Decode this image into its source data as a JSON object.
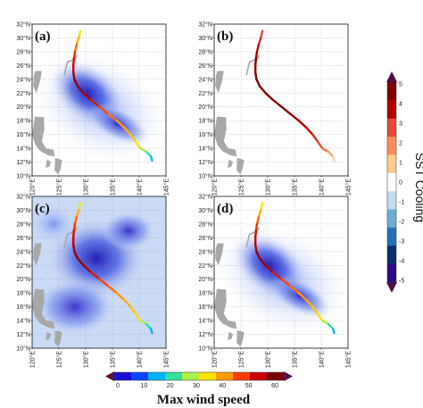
{
  "figure": {
    "panels": [
      {
        "label": "(a)",
        "field": "sst_cooling",
        "background": "#ffffff",
        "track_style": "wind"
      },
      {
        "label": "(b)",
        "field": "none",
        "background": "#ffffff",
        "track_style": "cooling"
      },
      {
        "label": "(c)",
        "field": "sst_cooling_full",
        "background": "#ffffff",
        "track_style": "wind"
      },
      {
        "label": "(d)",
        "field": "sst_cooling",
        "background": "#ffffff",
        "track_style": "wind"
      }
    ],
    "lat_ticks": [
      "32°N",
      "30°N",
      "28°N",
      "26°N",
      "24°N",
      "22°N",
      "20°N",
      "18°N",
      "16°N",
      "14°N",
      "12°N",
      "10°N"
    ],
    "lon_ticks": [
      "120°E",
      "125°E",
      "130°E",
      "135°E",
      "140°E",
      "145°E"
    ],
    "map_extent": {
      "lon_min": 120,
      "lon_max": 145,
      "lat_min": 10,
      "lat_max": 32
    },
    "track": [
      [
        129.0,
        31.0
      ],
      [
        128.7,
        30.0
      ],
      [
        128.3,
        29.0
      ],
      [
        128.0,
        28.0
      ],
      [
        127.8,
        27.0
      ],
      [
        127.7,
        26.0
      ],
      [
        127.7,
        25.0
      ],
      [
        127.9,
        24.0
      ],
      [
        128.5,
        23.0
      ],
      [
        129.6,
        22.0
      ],
      [
        131.0,
        21.0
      ],
      [
        132.6,
        20.0
      ],
      [
        134.2,
        19.0
      ],
      [
        135.8,
        18.0
      ],
      [
        137.2,
        17.0
      ],
      [
        138.4,
        16.0
      ],
      [
        139.3,
        15.0
      ],
      [
        140.2,
        14.0
      ],
      [
        141.3,
        13.5
      ],
      [
        142.2,
        12.8
      ],
      [
        142.4,
        12.2
      ]
    ],
    "track_wind": [
      30,
      38,
      45,
      50,
      55,
      57,
      59,
      62,
      63,
      62,
      58,
      52,
      48,
      45,
      42,
      40,
      38,
      35,
      25,
      18,
      12
    ],
    "track_cooling": [
      2.8,
      3.2,
      3.6,
      4.0,
      4.3,
      4.6,
      4.8,
      5.0,
      5.0,
      4.9,
      4.8,
      4.7,
      4.6,
      4.3,
      4.0,
      3.6,
      3.2,
      2.8,
      2.0,
      1.2,
      0.5
    ],
    "colorbar_sst": {
      "title": "SST Cooling",
      "ticks": [
        "5",
        "4",
        "3",
        "2",
        "1",
        "0",
        "-1",
        "-2",
        "-3",
        "-4",
        "-5"
      ],
      "colors": [
        "#7f0000",
        "#b30000",
        "#e34a33",
        "#fc8d59",
        "#fdcc8a",
        "#ffffff",
        "#c6dbef",
        "#6baed6",
        "#2171b5",
        "#08306b",
        "#2a0a8a"
      ],
      "arrow_color": "#4b0f45"
    },
    "colorbar_wind": {
      "title": "Max wind speed",
      "ticks": [
        "0",
        "10",
        "20",
        "30",
        "40",
        "50",
        "60"
      ],
      "colors": [
        "#1a0fd1",
        "#0a44ff",
        "#00b4ff",
        "#32e0a0",
        "#aaf04a",
        "#ffe300",
        "#ff9a00",
        "#ff3c00",
        "#c80000",
        "#7a0000"
      ],
      "arrow_color": "#5a1040"
    },
    "land_color": "#a8a8a8"
  }
}
